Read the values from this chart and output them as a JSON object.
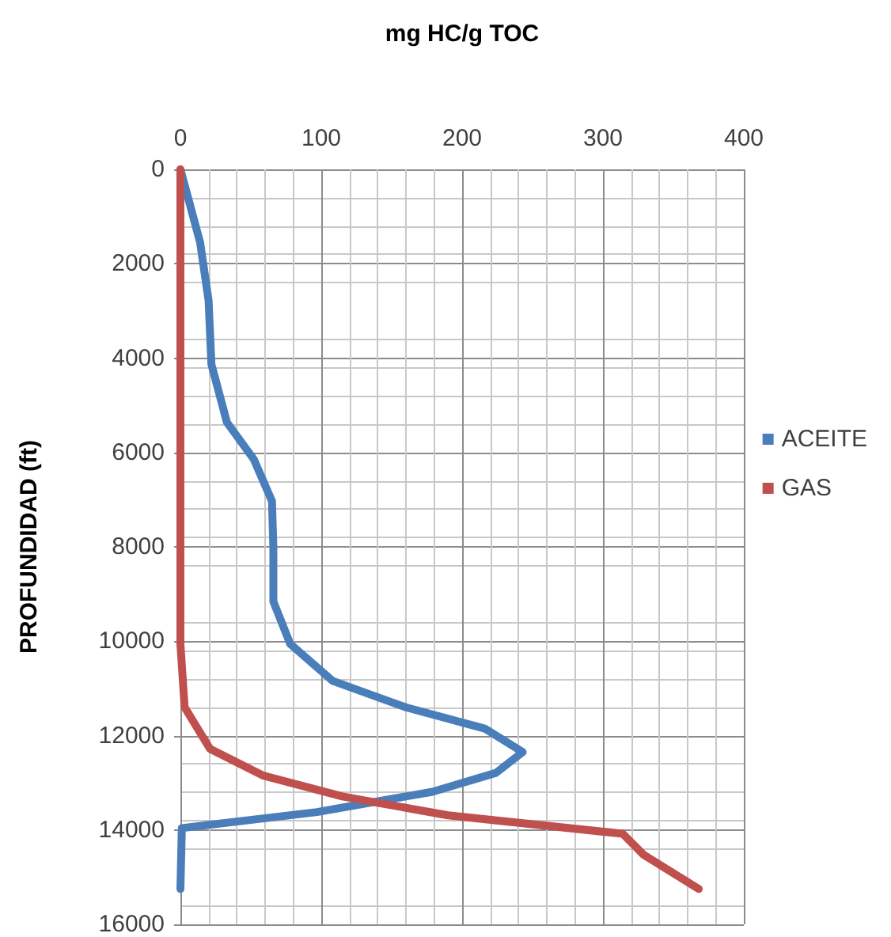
{
  "chart_data": {
    "type": "line",
    "xlabel": "mg HC/g TOC",
    "ylabel": "PROFUNDIDAD (ft)",
    "xlim": [
      0,
      400
    ],
    "xticks": [
      0,
      100,
      200,
      300,
      400
    ],
    "ylim": [
      16000,
      0
    ],
    "yticks": [
      0,
      2000,
      4000,
      6000,
      8000,
      10000,
      12000,
      14000,
      16000
    ],
    "grid": true,
    "legend": "right",
    "marker": "none",
    "line_style": "solid",
    "series": [
      {
        "name": "ACEITE",
        "color": "#4a7ebb",
        "x": [
          0,
          14,
          20,
          22,
          33,
          52,
          65,
          66,
          66,
          78,
          108,
          160,
          216,
          243,
          224,
          179,
          97,
          1,
          0
        ],
        "values": [
          0,
          1550,
          2780,
          4130,
          5360,
          6140,
          7030,
          8030,
          9160,
          10060,
          10840,
          11400,
          11850,
          12350,
          12790,
          13190,
          13620,
          13960,
          15250
        ]
      },
      {
        "name": "GAS",
        "color": "#c0504d",
        "x": [
          0,
          0,
          3,
          21,
          59,
          115,
          190,
          314,
          329,
          368
        ],
        "values": [
          0,
          10060,
          11400,
          12280,
          12850,
          13290,
          13690,
          14080,
          14530,
          15250
        ]
      }
    ]
  }
}
